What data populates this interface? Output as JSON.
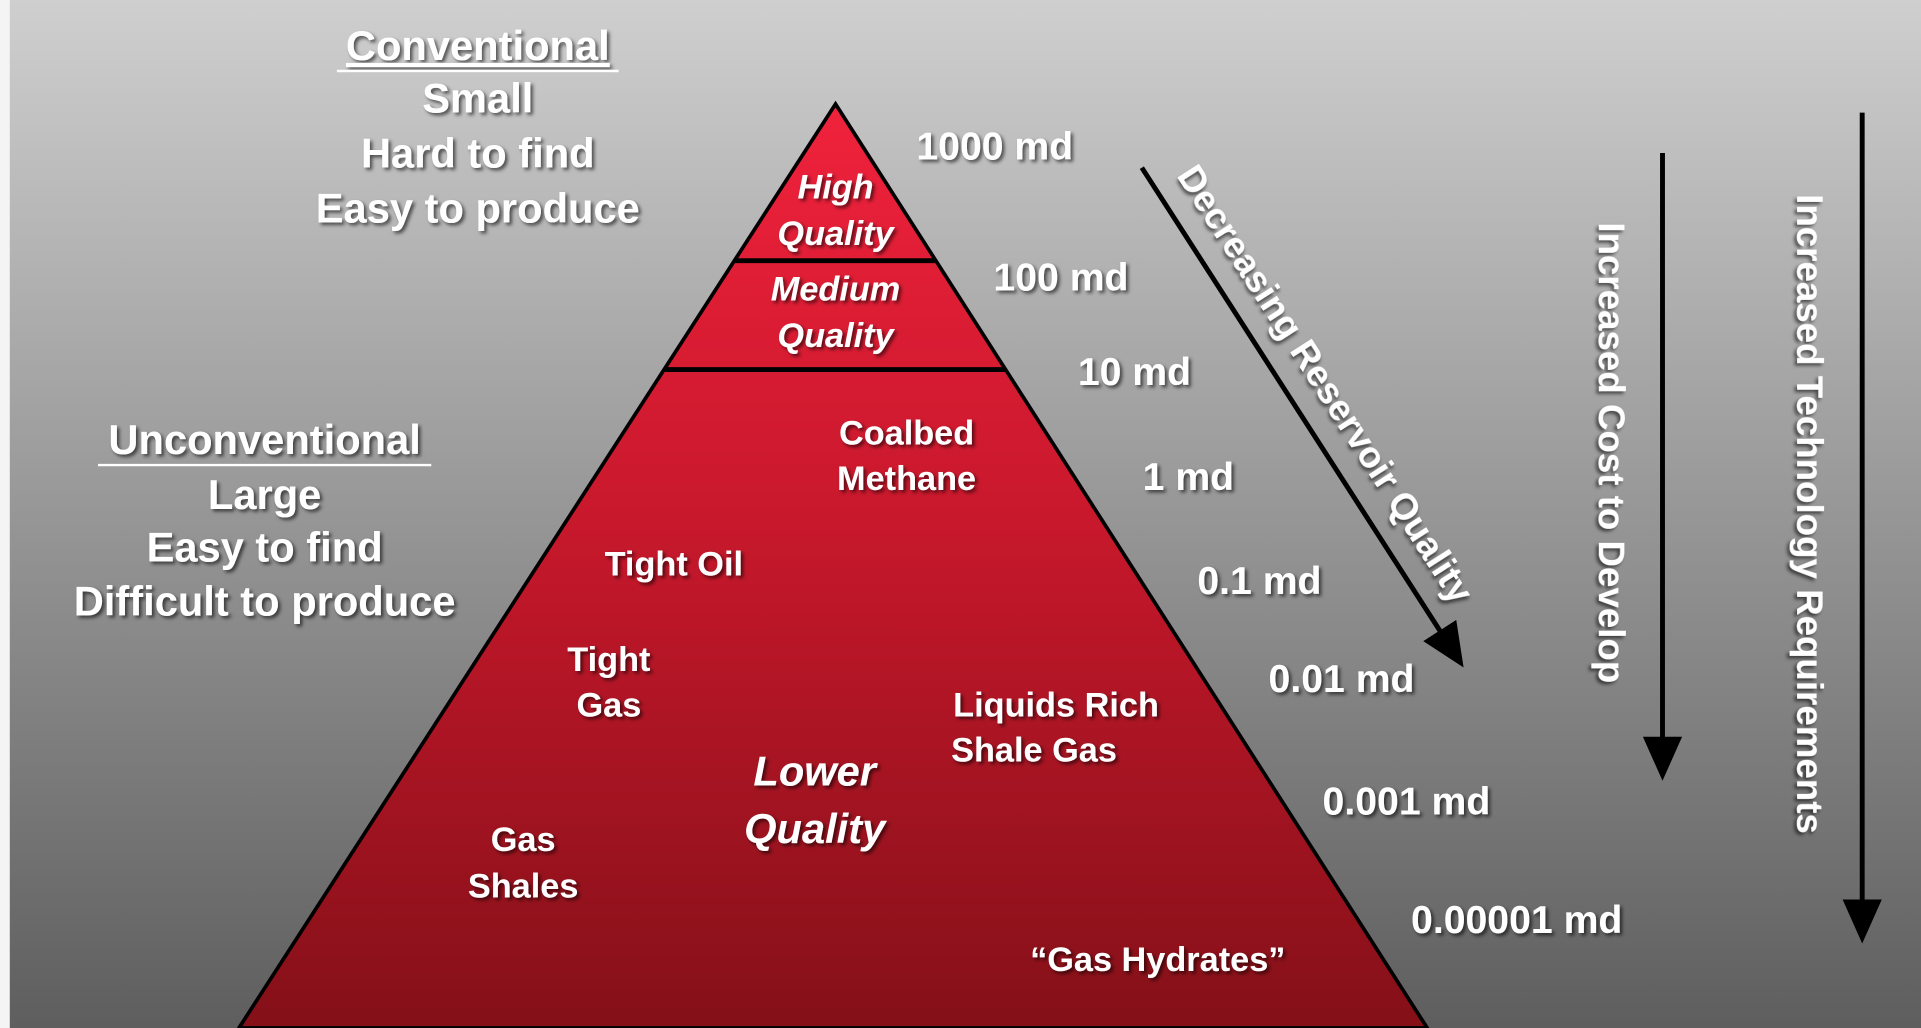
{
  "conventional": {
    "heading": "Conventional",
    "lines": [
      "Small",
      "Hard to find",
      "Easy to produce"
    ]
  },
  "unconventional": {
    "heading": "Unconventional",
    "lines": [
      "Large",
      "Easy to find",
      "Difficult to produce"
    ]
  },
  "pyramid": {
    "tiers": [
      {
        "lines": [
          "High",
          "Quality"
        ]
      },
      {
        "lines": [
          "Medium",
          "Quality"
        ]
      },
      {
        "lines": [
          "Lower",
          "Quality"
        ]
      }
    ],
    "resources": [
      {
        "lines": [
          "Coalbed",
          "Methane"
        ]
      },
      {
        "lines": [
          "Tight Oil"
        ]
      },
      {
        "lines": [
          "Tight",
          "Gas"
        ]
      },
      {
        "lines": [
          "Liquids Rich",
          "Shale Gas"
        ]
      },
      {
        "lines": [
          "Gas",
          "Shales"
        ]
      },
      {
        "lines": [
          "“Gas Hydrates”"
        ]
      }
    ]
  },
  "permeability": [
    "1000 md",
    "100 md",
    "10 md",
    "1 md",
    "0.1 md",
    "0.01 md",
    "0.001 md",
    "0.00001 md"
  ],
  "arrows": [
    "Decreasing Reservoir Quality",
    "Increased Cost to Develop",
    "Increased Technology Requirements"
  ]
}
